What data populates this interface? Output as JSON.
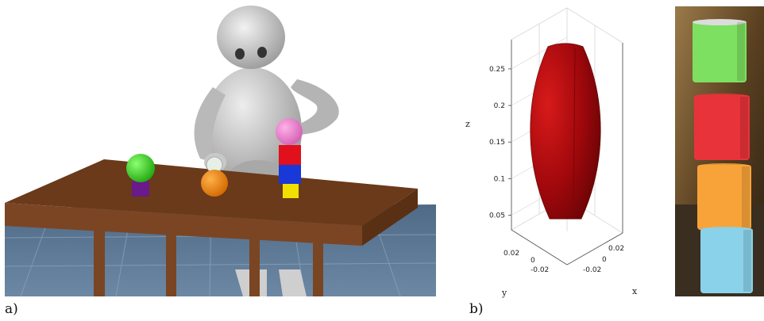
{
  "figure": {
    "panel_a_label": "a)",
    "panel_b_label": "b)"
  },
  "chart_data": {
    "type": "3d-surface",
    "shape": "ellipsoid",
    "xlabel": "x",
    "ylabel": "y",
    "zlabel": "z",
    "z_ticks": [
      "0.25",
      "0.2",
      "0.15",
      "0.1",
      "0.05"
    ],
    "z_values": [
      0.25,
      0.2,
      0.15,
      0.1,
      0.05
    ],
    "zlim": [
      0.03,
      0.29
    ],
    "x_ticks": [
      "0.02",
      "0",
      "-0.02"
    ],
    "y_ticks": [
      "0.02",
      "0",
      "-0.02"
    ],
    "ellipsoid_z_range": [
      0.045,
      0.285
    ],
    "color": "#a0080c"
  },
  "photo": {
    "cylinders": [
      {
        "name": "green",
        "color": "#7de060"
      },
      {
        "name": "red",
        "color": "#e8333a"
      },
      {
        "name": "orange",
        "color": "#f7a33a"
      },
      {
        "name": "blue",
        "color": "#8ad2ea"
      }
    ]
  }
}
